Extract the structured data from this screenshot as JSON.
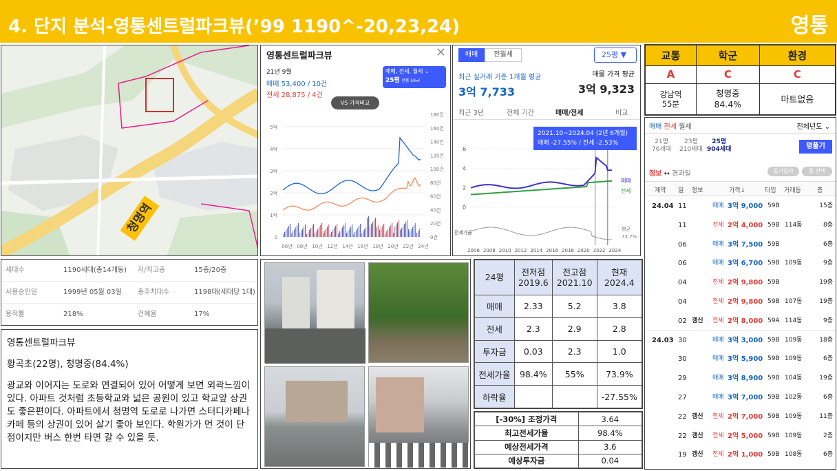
{
  "header": {
    "title": "4. 단지 분석-영통센트럴파크뷰(’99 1190^-20,23,24)",
    "region": "영통"
  },
  "map": {
    "station_label": "청명역"
  },
  "info": {
    "rows": [
      {
        "k1": "세대수",
        "v1": "1190세대(총14개동)",
        "k2": "저/최고층",
        "v2": "15층/20층"
      },
      {
        "k1": "사용승인일",
        "v1": "1999년 05월 03일",
        "k2": "총주차대수",
        "v2": "1198대(세대당 1대)"
      },
      {
        "k1": "용적률",
        "v1": "218%",
        "k2": "건폐율",
        "v2": "17%"
      }
    ]
  },
  "notes": {
    "name": "영통센트럴파크뷰",
    "schools": "황곡초(22명), 청명중(84.4%)",
    "desc": "광교와 이어지는 도로와 연결되어 있어 어떻게 보면 외곽느낌이 있다. 아파트 것처럼 초등학교와 넓은 공원이 있고 학교앞 상권도 좋은편이다. 아파트에서 청명역 도로로 나가면 스터디카페나 카페 등의 상권이 있어 살기 좋아 보인다. 학원가가 먼 것이 단점이지만 버스 한번 타면 갈 수 있을 듯."
  },
  "chart1": {
    "title": "영통센트럴파크뷰",
    "date": "21년 9월",
    "sale": "매매 53,400 / 10건",
    "jeonse": "전세 28,875 / 4건",
    "selector_top": "매매, 전세, 월세",
    "selector_size": "25평",
    "selector_sub": "전용 59㎡",
    "vs": "VS 가격비교",
    "left_ticks": [
      "5억",
      "4억",
      "3억",
      "2억",
      "1억",
      "0"
    ],
    "right_ticks": [
      "180건",
      "160건",
      "140건",
      "120건",
      "100건",
      "80건",
      "60건",
      "40건",
      "20건",
      "0건"
    ],
    "x_ticks": [
      "06년",
      "08년",
      "10년",
      "12년",
      "14년",
      "16년",
      "18년",
      "20년",
      "22년",
      "24년"
    ]
  },
  "chart2": {
    "tab_sale": "매매",
    "tab_month": "전월세",
    "size": "25평",
    "avg_label": "최근 실거래 기준 1개월 평균",
    "avg_value": "3억 7,733",
    "ask_label": "매물 가격 평균",
    "ask_value": "3억 9,323",
    "subtabs": [
      "최근 3년",
      "전체 기간",
      "매매/전세",
      "비교"
    ],
    "tooltip1": "2021.10~2024.04 (2년 6개월)",
    "tooltip2": "매매 -27.55%  /  전세 -2.53%",
    "y_ticks": [
      "6",
      "4",
      "2",
      "0"
    ],
    "x_ticks": [
      "2006",
      "2008",
      "2010",
      "2012",
      "2014",
      "2016",
      "2018",
      "2020",
      "2022",
      "2024"
    ],
    "legend_sale": "매매",
    "legend_jeonse": "전세",
    "ratio_label": "전세가율",
    "ratio_avg": "평균",
    "ratio_val": "73.7%"
  },
  "table24": {
    "head": [
      "24평",
      "전저점\n2019.6",
      "전고점\n2021.10",
      "현재\n2024.4"
    ],
    "rows": [
      [
        "매매",
        "2.33",
        "5.2",
        "3.8"
      ],
      [
        "전세",
        "2.3",
        "2.9",
        "2.8"
      ],
      [
        "투자금",
        "0.03",
        "2.3",
        "1.0"
      ],
      [
        "전세가율",
        "98.4%",
        "55%",
        "73.9%"
      ],
      [
        "하락율",
        "",
        "",
        "-27.55%"
      ]
    ]
  },
  "adjust": {
    "rows": [
      [
        "[-30%] 조정가격",
        "3.64"
      ],
      [
        "최고전세가율",
        "98.4%"
      ],
      [
        "예상전세가격",
        "3.6"
      ],
      [
        "예상투자금",
        "0.04"
      ]
    ]
  },
  "grade": {
    "heads": [
      "교통",
      "학군",
      "환경"
    ],
    "grades": [
      "A",
      "C",
      "C"
    ],
    "details": [
      "강남역\n55분",
      "청명중\n84.4%",
      "마트없음"
    ]
  },
  "trades": {
    "tabs": [
      "매매",
      "전세",
      "월세"
    ],
    "period": "전체년도",
    "sizes": [
      {
        "p": "21평",
        "h": "76세대"
      },
      {
        "p": "23평",
        "h": "210세대"
      },
      {
        "p": "25평",
        "h": "904세대"
      }
    ],
    "btn": "평풀기",
    "info_label": "정보",
    "info_sub": "경과일",
    "chips": [
      "동기일자",
      "동 선택"
    ],
    "cols": [
      "계약",
      "일",
      "정보",
      "가격↓",
      "타입",
      "거래동",
      "층"
    ],
    "rows": [
      {
        "m": "24.04",
        "d": "11",
        "t": "",
        "k": "매매",
        "p": "3억 9,000",
        "ty": "59B",
        "dong": "",
        "f": "15층"
      },
      {
        "m": "",
        "d": "11",
        "t": "",
        "k": "전세",
        "p": "2억 4,000",
        "ty": "59B",
        "dong": "114동",
        "f": "8층"
      },
      {
        "m": "",
        "d": "06",
        "t": "",
        "k": "매매",
        "p": "3억 7,500",
        "ty": "59B",
        "dong": "",
        "f": "6층"
      },
      {
        "m": "",
        "d": "06",
        "t": "",
        "k": "매매",
        "p": "3억 6,700",
        "ty": "59B",
        "dong": "109동",
        "f": "9층"
      },
      {
        "m": "",
        "d": "04",
        "t": "",
        "k": "전세",
        "p": "2억 9,800",
        "ty": "59B",
        "dong": "",
        "f": "19층"
      },
      {
        "m": "",
        "d": "04",
        "t": "",
        "k": "전세",
        "p": "2억 9,800",
        "ty": "59B",
        "dong": "107동",
        "f": "19층"
      },
      {
        "m": "",
        "d": "02",
        "t": "갱신",
        "k": "전세",
        "p": "2억 8,000",
        "ty": "59A",
        "dong": "114동",
        "f": "9층"
      },
      {
        "m": "24.03",
        "d": "30",
        "t": "",
        "k": "매매",
        "p": "3억 3,000",
        "ty": "59B",
        "dong": "109동",
        "f": "18층"
      },
      {
        "m": "",
        "d": "30",
        "t": "",
        "k": "매매",
        "p": "3억 5,900",
        "ty": "59B",
        "dong": "109동",
        "f": "6층"
      },
      {
        "m": "",
        "d": "29",
        "t": "",
        "k": "매매",
        "p": "3억 8,900",
        "ty": "59B",
        "dong": "104동",
        "f": "19층"
      },
      {
        "m": "",
        "d": "27",
        "t": "",
        "k": "매매",
        "p": "3억 7,000",
        "ty": "59B",
        "dong": "102동",
        "f": "6층"
      },
      {
        "m": "",
        "d": "22",
        "t": "갱신",
        "k": "전세",
        "p": "2억 7,000",
        "ty": "59B",
        "dong": "109동",
        "f": "11층"
      },
      {
        "m": "",
        "d": "22",
        "t": "갱신",
        "k": "전세",
        "p": "2억 5,000",
        "ty": "59B",
        "dong": "109동",
        "f": "2층"
      },
      {
        "m": "",
        "d": "19",
        "t": "갱신",
        "k": "전세",
        "p": "2억 1,000",
        "ty": "59B",
        "dong": "108동",
        "f": "6층"
      }
    ]
  }
}
